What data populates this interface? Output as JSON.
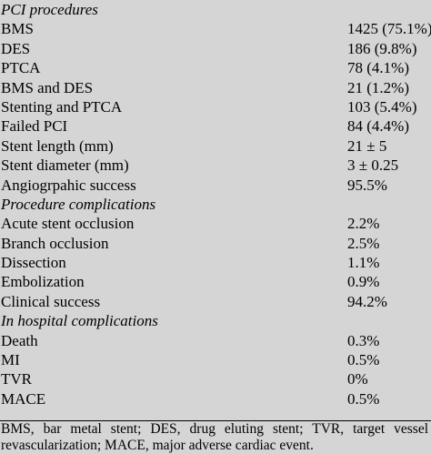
{
  "sections": [
    {
      "heading": "PCI procedures",
      "rows": [
        {
          "label": "BMS",
          "value": "1425 (75.1%)"
        },
        {
          "label": "DES",
          "value": "186 (9.8%)"
        },
        {
          "label": "PTCA",
          "value": "78 (4.1%)"
        },
        {
          "label": "BMS and DES",
          "value": "21 (1.2%)"
        },
        {
          "label": "Stenting and PTCA",
          "value": "103 (5.4%)"
        },
        {
          "label": "Failed PCI",
          "value": "84 (4.4%)"
        },
        {
          "label": "Stent length (mm)",
          "value": "21 ± 5"
        },
        {
          "label": "Stent diameter (mm)",
          "value": "3 ± 0.25"
        },
        {
          "label": "Angiogrpahic success",
          "value": "95.5%"
        }
      ]
    },
    {
      "heading": "Procedure complications",
      "rows": [
        {
          "label": "Acute stent occlusion",
          "value": "2.2%"
        },
        {
          "label": "Branch occlusion",
          "value": "2.5%"
        },
        {
          "label": "Dissection",
          "value": "1.1%"
        },
        {
          "label": "Embolization",
          "value": "0.9%"
        },
        {
          "label": "Clinical success",
          "value": "94.2%"
        }
      ]
    },
    {
      "heading": "In hospital complications",
      "rows": [
        {
          "label": "Death",
          "value": "0.3%"
        },
        {
          "label": "MI",
          "value": "0.5%"
        },
        {
          "label": "TVR",
          "value": "0%"
        },
        {
          "label": "MACE",
          "value": "0.5%"
        }
      ]
    }
  ],
  "footnote": "BMS, bar metal stent; DES, drug eluting stent; TVR, target vessel revascularization; MACE, major adverse cardiac event."
}
